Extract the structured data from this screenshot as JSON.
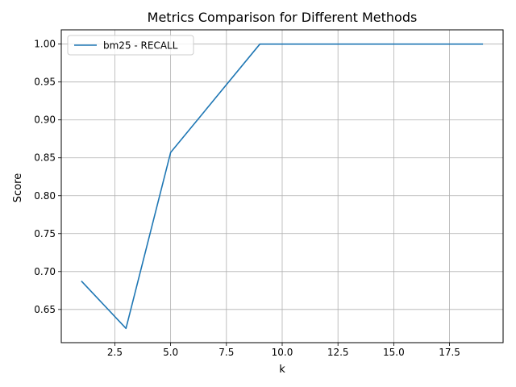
{
  "chart_data": {
    "type": "line",
    "title": "Metrics Comparison for Different Methods",
    "xlabel": "k",
    "ylabel": "Score",
    "xlim": [
      0.1,
      19.9
    ],
    "ylim": [
      0.6062,
      1.0188
    ],
    "xticks": [
      2.5,
      5.0,
      7.5,
      10.0,
      12.5,
      15.0,
      17.5
    ],
    "xtick_labels": [
      "2.5",
      "5.0",
      "7.5",
      "10.0",
      "12.5",
      "15.0",
      "17.5"
    ],
    "yticks": [
      0.65,
      0.7,
      0.75,
      0.8,
      0.85,
      0.9,
      0.95,
      1.0
    ],
    "ytick_labels": [
      "0.65",
      "0.70",
      "0.75",
      "0.80",
      "0.85",
      "0.90",
      "0.95",
      "1.00"
    ],
    "grid": true,
    "legend_position": "top-left",
    "series": [
      {
        "name": "bm25 - RECALL",
        "color": "#1f77b4",
        "x": [
          1,
          3,
          5,
          7,
          9,
          11,
          13,
          15,
          17,
          19
        ],
        "y": [
          0.6875,
          0.625,
          0.857,
          0.9285,
          1.0,
          1.0,
          1.0,
          1.0,
          1.0,
          1.0
        ]
      }
    ]
  }
}
